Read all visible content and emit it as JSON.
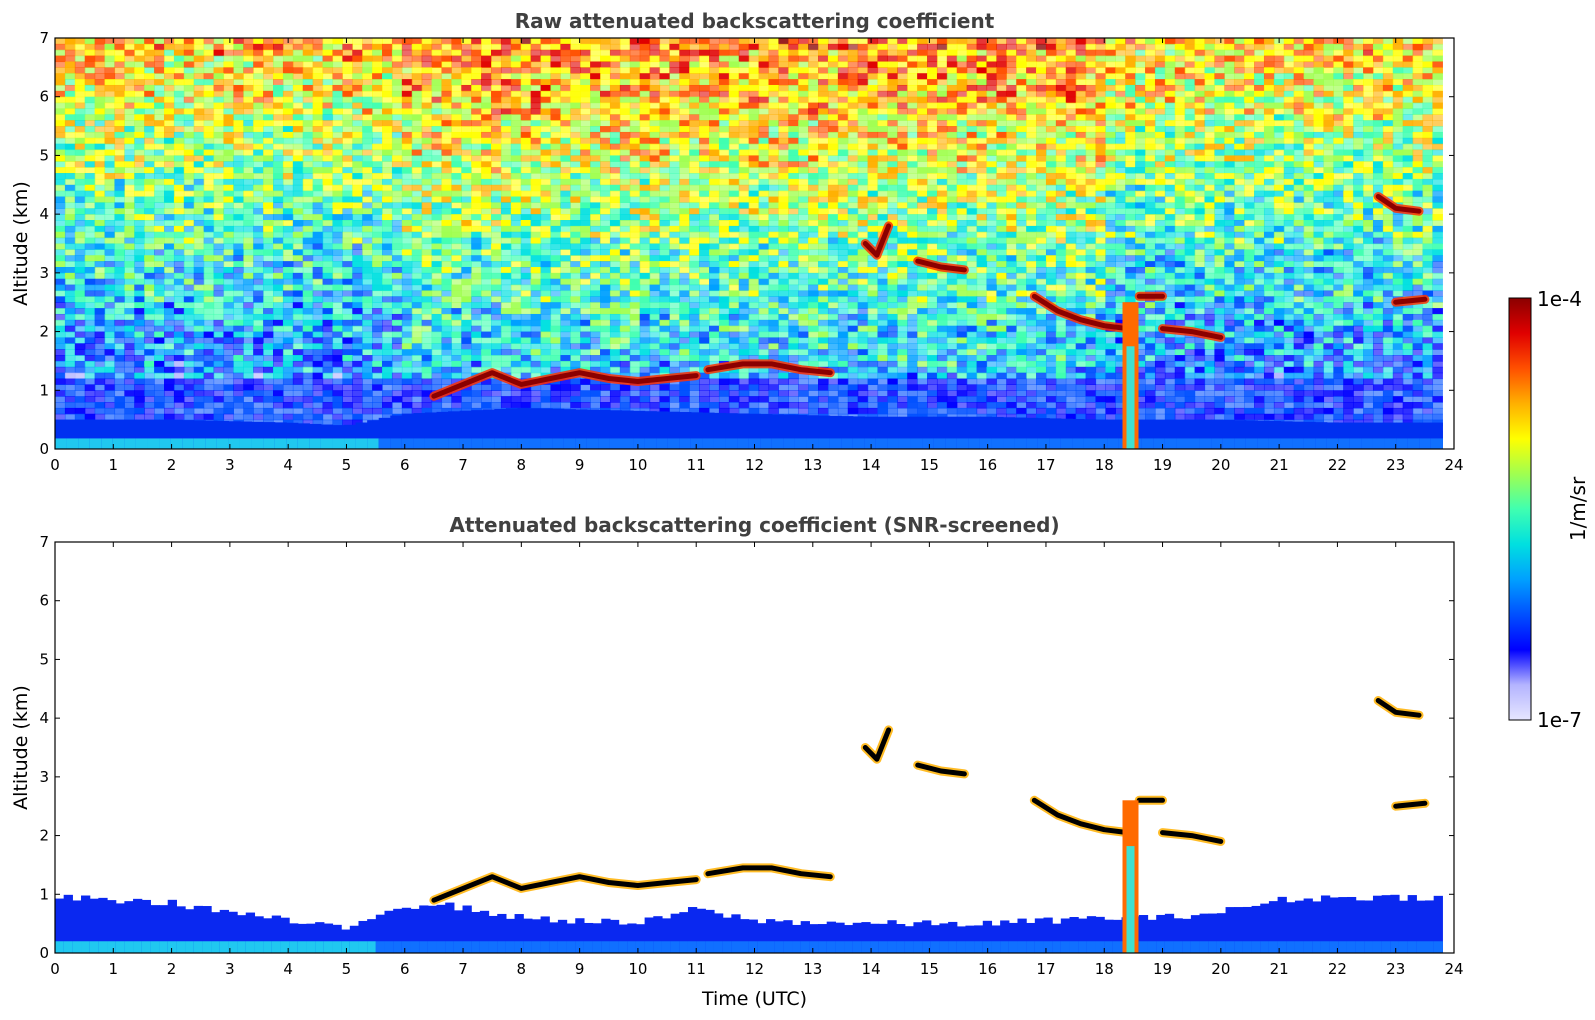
{
  "chart_data": [
    {
      "type": "heatmap",
      "title": "Raw attenuated backscattering coefficient",
      "xlabel": "",
      "ylabel": "Altitude (km)",
      "xlim": [
        0,
        24
      ],
      "ylim": [
        0,
        7
      ],
      "xticks": [
        "0",
        "1",
        "2",
        "3",
        "4",
        "5",
        "6",
        "7",
        "8",
        "9",
        "10",
        "11",
        "12",
        "13",
        "14",
        "15",
        "16",
        "17",
        "18",
        "19",
        "20",
        "21",
        "22",
        "23",
        "24"
      ],
      "yticks": [
        "0",
        "1",
        "2",
        "3",
        "4",
        "5",
        "6",
        "7"
      ],
      "data_extent_hours": [
        0,
        23.8
      ],
      "boundary_layer": [
        {
          "x": 0,
          "top": 0.5
        },
        {
          "x": 2,
          "top": 0.5
        },
        {
          "x": 4,
          "top": 0.45
        },
        {
          "x": 5,
          "top": 0.4
        },
        {
          "x": 6,
          "top": 0.6
        },
        {
          "x": 8,
          "top": 0.7
        },
        {
          "x": 10,
          "top": 0.65
        },
        {
          "x": 12,
          "top": 0.6
        },
        {
          "x": 14,
          "top": 0.55
        },
        {
          "x": 16,
          "top": 0.55
        },
        {
          "x": 18,
          "top": 0.5
        },
        {
          "x": 20,
          "top": 0.5
        },
        {
          "x": 22,
          "top": 0.45
        },
        {
          "x": 23.8,
          "top": 0.45
        }
      ],
      "cloud_layers": [
        {
          "x": [
            6.5,
            7.0,
            7.5,
            8.0,
            8.5,
            9.0,
            9.5,
            10.0,
            10.5,
            11.0
          ],
          "y": [
            0.9,
            1.1,
            1.3,
            1.1,
            1.2,
            1.3,
            1.2,
            1.15,
            1.2,
            1.25
          ]
        },
        {
          "x": [
            11.2,
            11.8,
            12.3,
            12.8,
            13.3
          ],
          "y": [
            1.35,
            1.45,
            1.45,
            1.35,
            1.3
          ]
        },
        {
          "x": [
            13.9,
            14.1,
            14.3
          ],
          "y": [
            3.5,
            3.3,
            3.8
          ]
        },
        {
          "x": [
            14.8,
            15.2,
            15.6
          ],
          "y": [
            3.2,
            3.1,
            3.05
          ]
        },
        {
          "x": [
            16.8,
            17.2,
            17.6,
            18.0,
            18.4
          ],
          "y": [
            2.6,
            2.35,
            2.2,
            2.1,
            2.05
          ]
        },
        {
          "x": [
            18.6,
            19.0
          ],
          "y": [
            2.6,
            2.6
          ]
        },
        {
          "x": [
            19.0,
            19.5,
            20.0
          ],
          "y": [
            2.05,
            2.0,
            1.9
          ]
        },
        {
          "x": [
            22.7,
            23.0,
            23.4
          ],
          "y": [
            4.3,
            4.1,
            4.05
          ]
        },
        {
          "x": [
            23.0,
            23.5
          ],
          "y": [
            2.5,
            2.55
          ]
        }
      ],
      "precipitation_shaft": {
        "x": 18.45,
        "ybottom": 0,
        "ytop": 2.5
      }
    },
    {
      "type": "heatmap",
      "title": "Attenuated backscattering coefficient (SNR-screened)",
      "xlabel": "Time (UTC)",
      "ylabel": "Altitude (km)",
      "xlim": [
        0,
        24
      ],
      "ylim": [
        0,
        7
      ],
      "xticks": [
        "0",
        "1",
        "2",
        "3",
        "4",
        "5",
        "6",
        "7",
        "8",
        "9",
        "10",
        "11",
        "12",
        "13",
        "14",
        "15",
        "16",
        "17",
        "18",
        "19",
        "20",
        "21",
        "22",
        "23",
        "24"
      ],
      "yticks": [
        "0",
        "1",
        "2",
        "3",
        "4",
        "5",
        "6",
        "7"
      ],
      "data_extent_hours": [
        0,
        23.8
      ],
      "boundary_layer": [
        {
          "x": 0,
          "top": 0.95
        },
        {
          "x": 2,
          "top": 0.85
        },
        {
          "x": 4,
          "top": 0.55
        },
        {
          "x": 5,
          "top": 0.4
        },
        {
          "x": 5.7,
          "top": 0.75
        },
        {
          "x": 6.5,
          "top": 0.85
        },
        {
          "x": 8,
          "top": 0.6
        },
        {
          "x": 10,
          "top": 0.5
        },
        {
          "x": 11,
          "top": 0.75
        },
        {
          "x": 12,
          "top": 0.55
        },
        {
          "x": 14,
          "top": 0.5
        },
        {
          "x": 16,
          "top": 0.5
        },
        {
          "x": 18,
          "top": 0.6
        },
        {
          "x": 19,
          "top": 0.6
        },
        {
          "x": 20,
          "top": 0.7
        },
        {
          "x": 21,
          "top": 0.9
        },
        {
          "x": 22,
          "top": 0.95
        },
        {
          "x": 23.8,
          "top": 0.95
        }
      ],
      "cloud_layers": [
        {
          "x": [
            6.5,
            7.0,
            7.5,
            8.0,
            8.5,
            9.0,
            9.5,
            10.0,
            10.5,
            11.0
          ],
          "y": [
            0.9,
            1.1,
            1.3,
            1.1,
            1.2,
            1.3,
            1.2,
            1.15,
            1.2,
            1.25
          ]
        },
        {
          "x": [
            11.2,
            11.8,
            12.3,
            12.8,
            13.3
          ],
          "y": [
            1.35,
            1.45,
            1.45,
            1.35,
            1.3
          ]
        },
        {
          "x": [
            13.9,
            14.1,
            14.3
          ],
          "y": [
            3.5,
            3.3,
            3.8
          ]
        },
        {
          "x": [
            14.8,
            15.2,
            15.6
          ],
          "y": [
            3.2,
            3.1,
            3.05
          ]
        },
        {
          "x": [
            16.8,
            17.2,
            17.6,
            18.0,
            18.4
          ],
          "y": [
            2.6,
            2.35,
            2.2,
            2.1,
            2.05
          ]
        },
        {
          "x": [
            18.6,
            19.0
          ],
          "y": [
            2.6,
            2.6
          ]
        },
        {
          "x": [
            19.0,
            19.5,
            20.0
          ],
          "y": [
            2.05,
            2.0,
            1.9
          ]
        },
        {
          "x": [
            22.7,
            23.0,
            23.4
          ],
          "y": [
            4.3,
            4.1,
            4.05
          ]
        },
        {
          "x": [
            23.0,
            23.5
          ],
          "y": [
            2.5,
            2.55
          ]
        }
      ],
      "precipitation_shaft": {
        "x": 18.45,
        "ybottom": 0,
        "ytop": 2.6
      }
    }
  ],
  "colorbar": {
    "label": "1/m/sr",
    "max_label": "1e-4",
    "min_label": "1e-7",
    "scale": "log",
    "range": [
      1e-07,
      0.0001
    ],
    "colormap": [
      "#e6e6ff",
      "#b4b4ff",
      "#0000ff",
      "#0050ff",
      "#00a0ff",
      "#00e0e0",
      "#40ffb0",
      "#a0ff50",
      "#ffff00",
      "#ffb000",
      "#ff5000",
      "#e00000",
      "#8b0000"
    ]
  }
}
